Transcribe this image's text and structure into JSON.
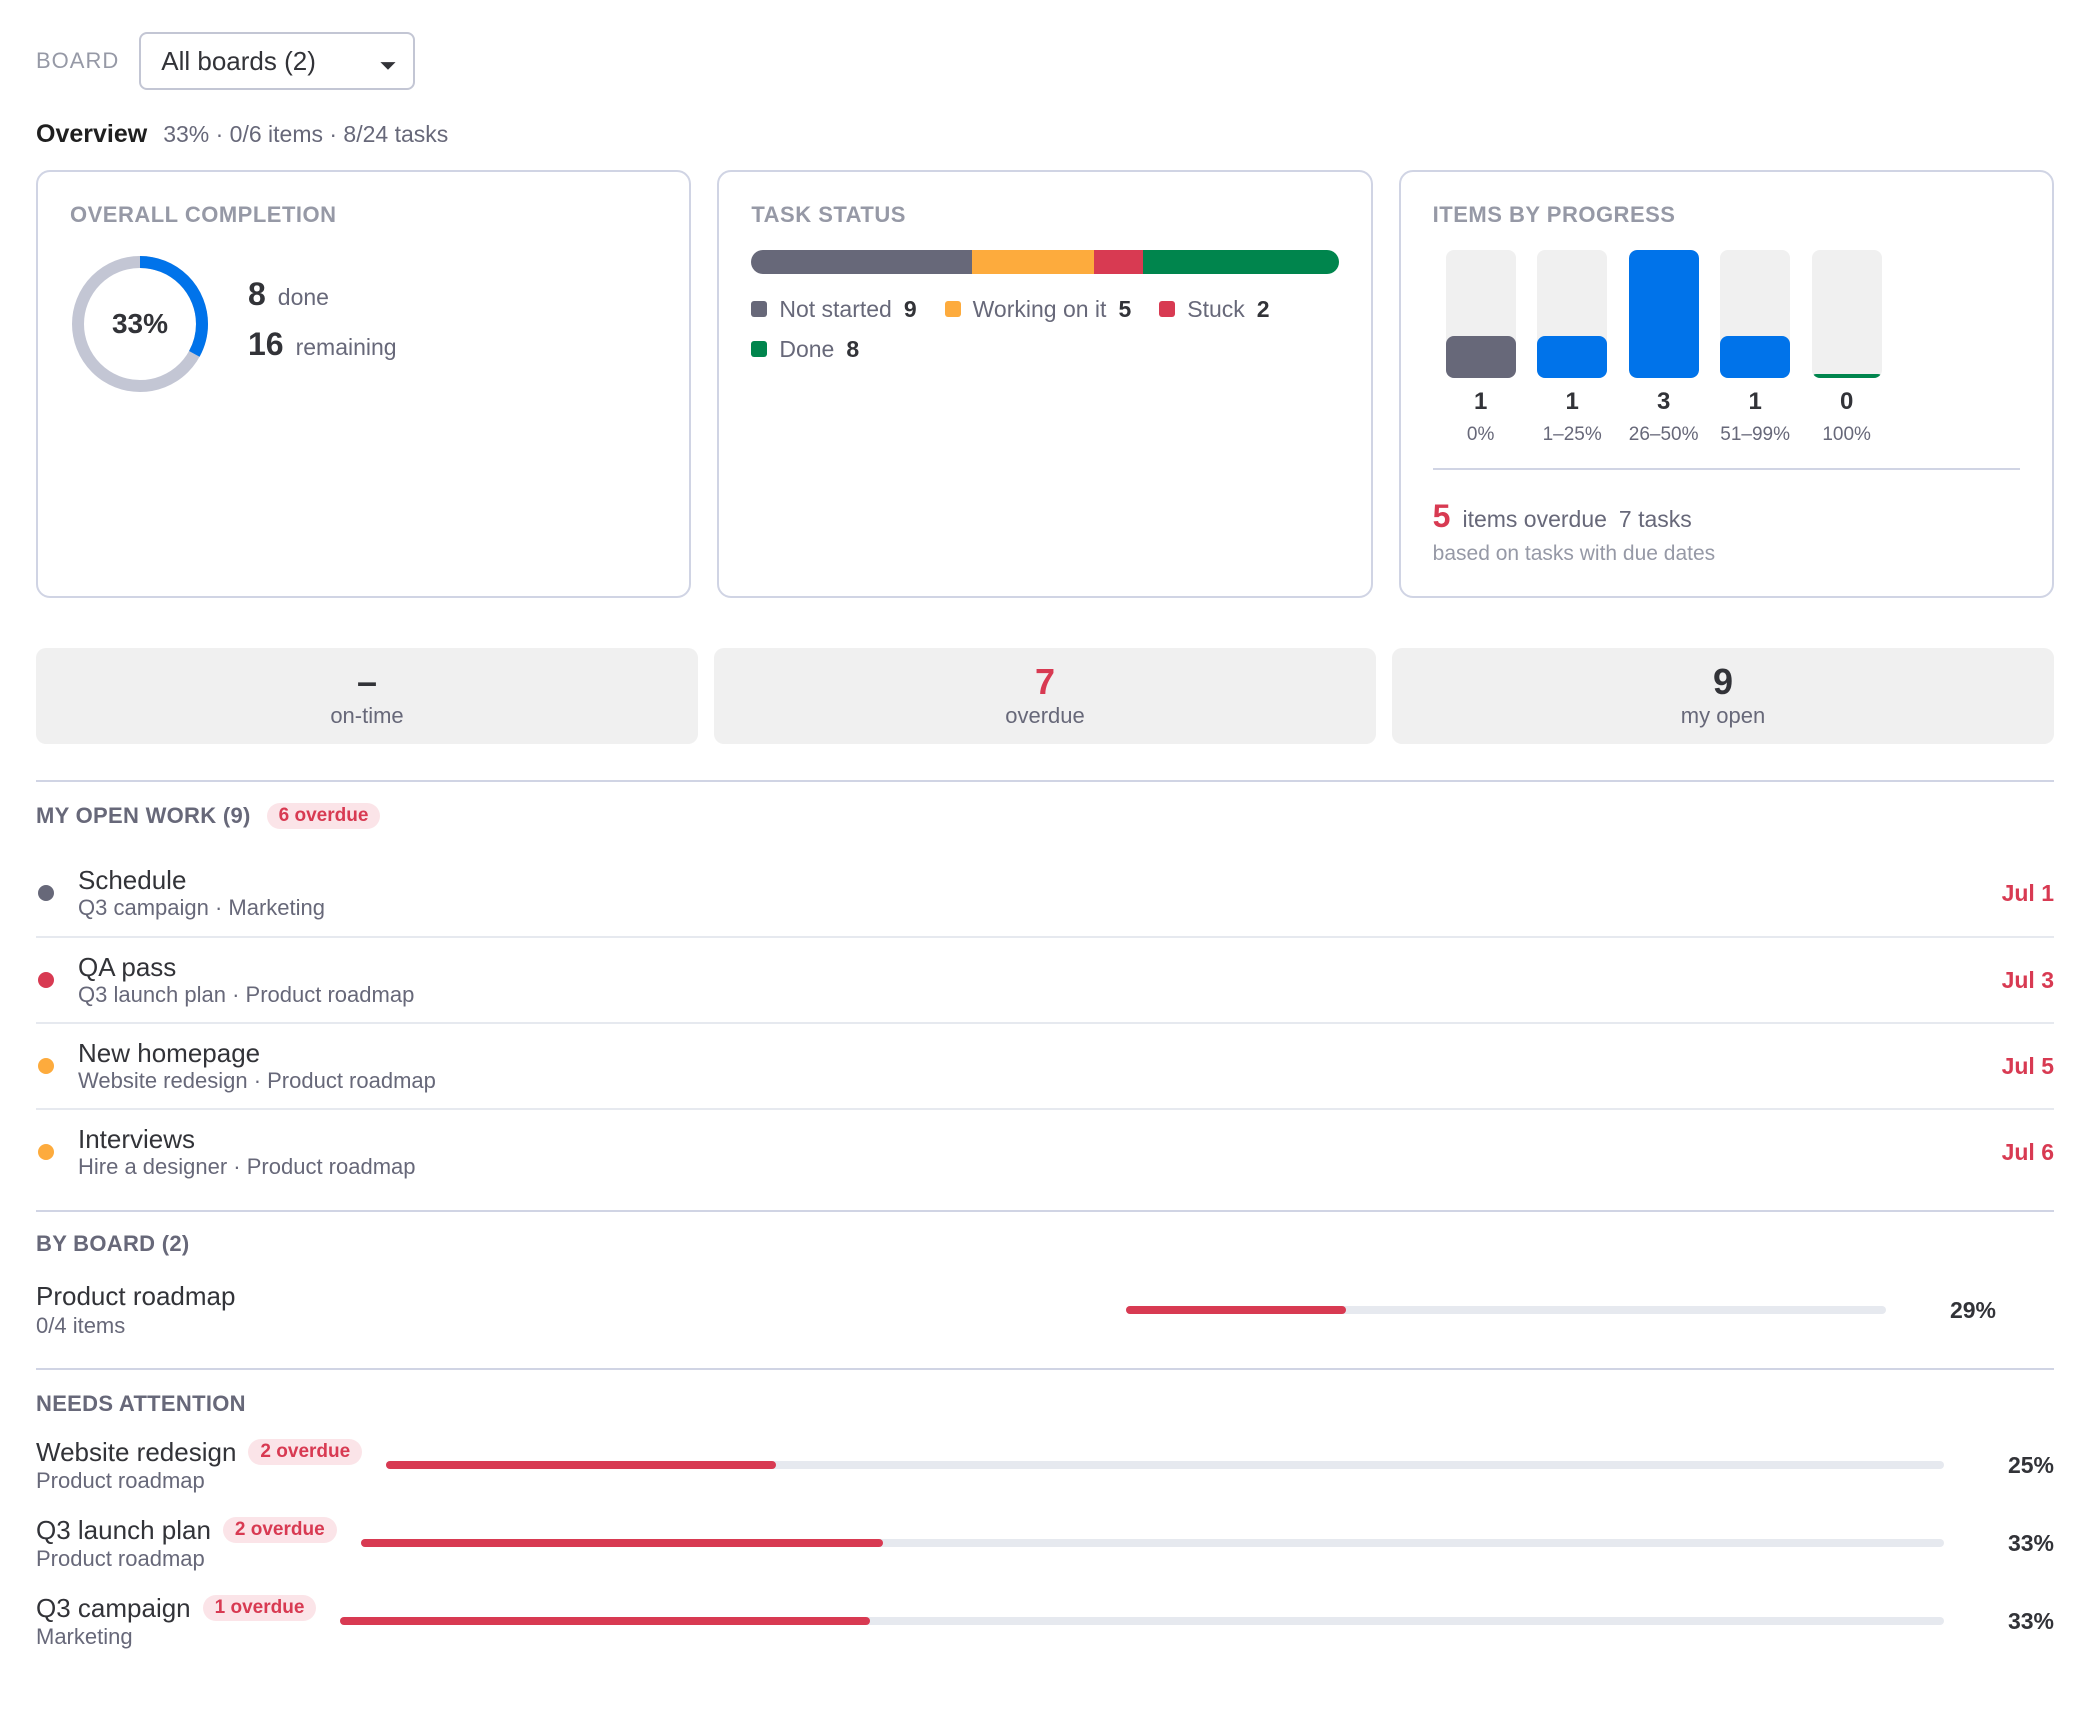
{
  "board": {
    "label": "BOARD",
    "selected": "All boards (2)"
  },
  "overview": {
    "title": "Overview",
    "summary": "33% · 0/6 items · 8/24 tasks"
  },
  "overall": {
    "title": "OVERALL COMPLETION",
    "percent_label": "33%",
    "percent": 33,
    "done": "8",
    "done_label": "done",
    "remaining": "16",
    "remaining_label": "remaining",
    "ring_color": "#0073ea",
    "track_color": "#c3c6d4"
  },
  "task_status": {
    "title": "TASK STATUS",
    "segments": [
      {
        "label": "Not started",
        "count": "9",
        "value": 9,
        "color": "#676879"
      },
      {
        "label": "Working on it",
        "count": "5",
        "value": 5,
        "color": "#fdab3d"
      },
      {
        "label": "Stuck",
        "count": "2",
        "value": 2,
        "color": "#d83a52"
      },
      {
        "label": "Done",
        "count": "8",
        "value": 8,
        "color": "#00854d"
      }
    ]
  },
  "items_progress": {
    "title": "ITEMS BY PROGRESS",
    "columns": [
      {
        "count": "1",
        "range": "0%",
        "fill": 0.33,
        "color": "#676879"
      },
      {
        "count": "1",
        "range": "1–25%",
        "fill": 0.33,
        "color": "#0073ea"
      },
      {
        "count": "3",
        "range": "26–50%",
        "fill": 1.0,
        "color": "#0073ea"
      },
      {
        "count": "1",
        "range": "51–99%",
        "fill": 0.33,
        "color": "#0073ea"
      },
      {
        "count": "0",
        "range": "100%",
        "fill": 0.03,
        "color": "#00854d"
      }
    ],
    "overdue_count": "5",
    "overdue_label": "items overdue",
    "overdue_tasks": "7 tasks",
    "note": "based on tasks with due dates"
  },
  "kpis": [
    {
      "value": "–",
      "label": "on-time"
    },
    {
      "value": "7",
      "label": "overdue"
    },
    {
      "value": "9",
      "label": "my open"
    }
  ],
  "my_work": {
    "title": "MY OPEN WORK (9)",
    "badge": "6 overdue",
    "items": [
      {
        "name": "Schedule",
        "sub": "Q3 campaign · Marketing",
        "date": "Jul 1",
        "dot": "#676879"
      },
      {
        "name": "QA pass",
        "sub": "Q3 launch plan · Product roadmap",
        "date": "Jul 3",
        "dot": "#d83a52"
      },
      {
        "name": "New homepage",
        "sub": "Website redesign · Product roadmap",
        "date": "Jul 5",
        "dot": "#fdab3d"
      },
      {
        "name": "Interviews",
        "sub": "Hire a designer · Product roadmap",
        "date": "Jul 6",
        "dot": "#fdab3d"
      }
    ]
  },
  "by_board": {
    "title": "BY BOARD (2)",
    "items": [
      {
        "name": "Product roadmap",
        "sub": "0/4 items",
        "percent": "29%",
        "value": 0.29
      }
    ]
  },
  "needs_attention": {
    "title": "NEEDS ATTENTION",
    "items": [
      {
        "name": "Website redesign",
        "badge": "2 overdue",
        "sub": "Product roadmap",
        "percent": "25%",
        "value": 0.25
      },
      {
        "name": "Q3 launch plan",
        "badge": "2 overdue",
        "sub": "Product roadmap",
        "percent": "33%",
        "value": 0.33
      },
      {
        "name": "Q3 campaign",
        "badge": "1 overdue",
        "sub": "Marketing",
        "percent": "33%",
        "value": 0.33
      }
    ]
  }
}
